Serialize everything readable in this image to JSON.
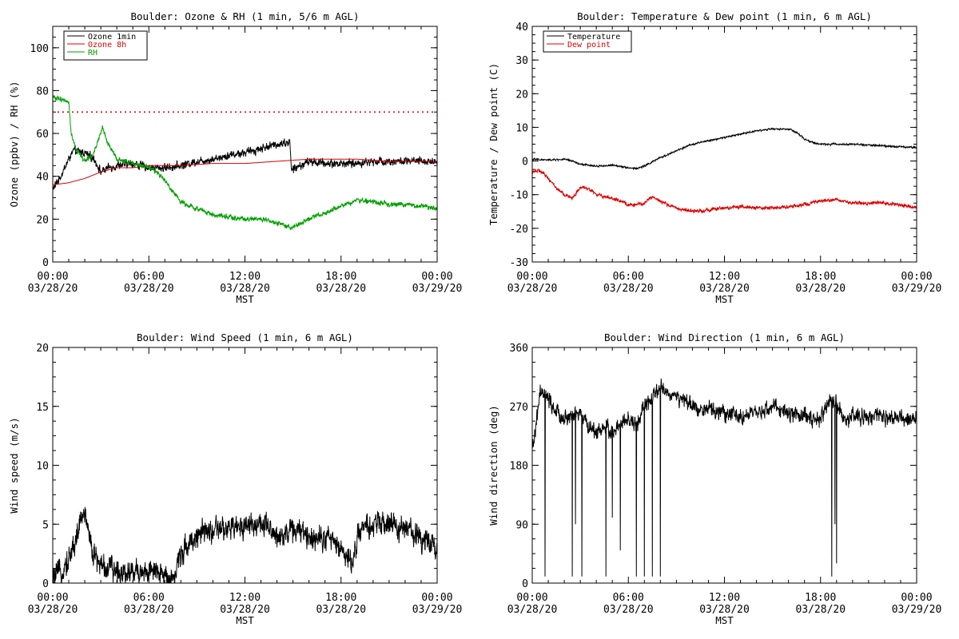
{
  "chart_data": [
    {
      "type": "line",
      "title": "Boulder: Ozone & RH (1 min, 5/6 m AGL)",
      "xlabel": "MST",
      "ylabel": "Ozone (ppbv) / RH (%)",
      "xlim": [
        0,
        24
      ],
      "ylim": [
        0,
        110
      ],
      "yticks": [
        0,
        20,
        40,
        60,
        80,
        100
      ],
      "x_ticks": [
        {
          "time": "00:00",
          "date": "03/28/20"
        },
        {
          "time": "06:00",
          "date": "03/28/20"
        },
        {
          "time": "12:00",
          "date": "03/28/20"
        },
        {
          "time": "18:00",
          "date": "03/28/20"
        },
        {
          "time": "00:00",
          "date": "03/29/20"
        }
      ],
      "legend_position": "top-left",
      "reference_line": {
        "value": 70,
        "color": "#dd0000",
        "style": "dotted"
      },
      "series": [
        {
          "name": "Ozone 1min",
          "color": "#000000",
          "noise": 2.2,
          "points": [
            [
              0,
              34
            ],
            [
              0.5,
              40
            ],
            [
              1,
              48
            ],
            [
              1.3,
              52
            ],
            [
              2,
              51
            ],
            [
              2.6,
              48
            ],
            [
              3,
              42
            ],
            [
              3.5,
              44
            ],
            [
              4,
              45
            ],
            [
              5,
              46
            ],
            [
              6,
              44
            ],
            [
              7,
              44
            ],
            [
              8,
              45
            ],
            [
              9,
              47
            ],
            [
              10,
              48
            ],
            [
              11,
              50
            ],
            [
              12,
              51
            ],
            [
              13,
              53
            ],
            [
              14,
              55
            ],
            [
              14.8,
              56
            ],
            [
              14.9,
              43
            ],
            [
              15.5,
              45
            ],
            [
              16,
              47
            ],
            [
              17,
              46
            ],
            [
              18,
              46
            ],
            [
              19,
              46
            ],
            [
              20,
              47
            ],
            [
              22,
              47
            ],
            [
              24,
              47
            ]
          ]
        },
        {
          "name": "Ozone 8h",
          "color": "#dd0000",
          "noise": 0,
          "points": [
            [
              0,
              36
            ],
            [
              1,
              37
            ],
            [
              2,
              39
            ],
            [
              3,
              42
            ],
            [
              4,
              44
            ],
            [
              5,
              44
            ],
            [
              6,
              45
            ],
            [
              8,
              45
            ],
            [
              10,
              46
            ],
            [
              12,
              46
            ],
            [
              14,
              47
            ],
            [
              16,
              48
            ],
            [
              17,
              48
            ],
            [
              18,
              48
            ],
            [
              19,
              48
            ],
            [
              21,
              47
            ],
            [
              24,
              47
            ]
          ]
        },
        {
          "name": "RH",
          "color": "#00a000",
          "noise": 1.3,
          "points": [
            [
              0,
              77
            ],
            [
              0.5,
              76
            ],
            [
              1,
              75
            ],
            [
              1.15,
              60
            ],
            [
              1.5,
              52
            ],
            [
              2,
              47
            ],
            [
              2.5,
              50
            ],
            [
              3,
              60
            ],
            [
              3.1,
              63
            ],
            [
              3.4,
              56
            ],
            [
              4,
              48
            ],
            [
              5,
              46
            ],
            [
              6,
              44
            ],
            [
              6.5,
              42
            ],
            [
              7,
              38
            ],
            [
              7.5,
              33
            ],
            [
              8,
              28
            ],
            [
              9,
              25
            ],
            [
              10,
              22
            ],
            [
              11,
              21
            ],
            [
              12,
              20
            ],
            [
              13,
              20
            ],
            [
              14,
              18
            ],
            [
              14.8,
              16
            ],
            [
              15.5,
              18
            ],
            [
              16,
              20
            ],
            [
              17,
              23
            ],
            [
              18,
              26
            ],
            [
              19,
              29
            ],
            [
              20,
              28
            ],
            [
              21,
              27
            ],
            [
              22,
              27
            ],
            [
              23,
              26
            ],
            [
              24,
              25
            ]
          ]
        }
      ]
    },
    {
      "type": "line",
      "title": "Boulder: Temperature & Dew point (1 min, 6 m AGL)",
      "xlabel": "MST",
      "ylabel": "Temperature / Dew point (C)",
      "xlim": [
        0,
        24
      ],
      "ylim": [
        -30,
        40
      ],
      "yticks": [
        -30,
        -20,
        -10,
        0,
        10,
        20,
        30,
        40
      ],
      "x_ticks": [
        {
          "time": "00:00",
          "date": "03/28/20"
        },
        {
          "time": "06:00",
          "date": "03/28/20"
        },
        {
          "time": "12:00",
          "date": "03/28/20"
        },
        {
          "time": "18:00",
          "date": "03/28/20"
        },
        {
          "time": "00:00",
          "date": "03/29/20"
        }
      ],
      "legend_position": "top-left",
      "series": [
        {
          "name": "Temperature",
          "color": "#000000",
          "noise": 0.3,
          "points": [
            [
              0,
              0.5
            ],
            [
              1,
              0.3
            ],
            [
              2,
              0.5
            ],
            [
              2.5,
              0
            ],
            [
              3,
              -1
            ],
            [
              4,
              -1.5
            ],
            [
              5,
              -1.3
            ],
            [
              5.5,
              -1.5
            ],
            [
              6,
              -2
            ],
            [
              6.5,
              -2.3
            ],
            [
              7,
              -1.5
            ],
            [
              8,
              1
            ],
            [
              9,
              3
            ],
            [
              10,
              5
            ],
            [
              11,
              6
            ],
            [
              12,
              7
            ],
            [
              13,
              8
            ],
            [
              14,
              9
            ],
            [
              15,
              9.5
            ],
            [
              16,
              9.5
            ],
            [
              16.5,
              8.5
            ],
            [
              17,
              6.5
            ],
            [
              17.5,
              5.5
            ],
            [
              18,
              5
            ],
            [
              20,
              5
            ],
            [
              22,
              4.5
            ],
            [
              24,
              4
            ]
          ]
        },
        {
          "name": "Dew point",
          "color": "#dd0000",
          "noise": 0.6,
          "points": [
            [
              0,
              -3
            ],
            [
              0.5,
              -3
            ],
            [
              1,
              -5
            ],
            [
              1.5,
              -8
            ],
            [
              2,
              -10
            ],
            [
              2.5,
              -11
            ],
            [
              3,
              -8
            ],
            [
              3.5,
              -8
            ],
            [
              4,
              -10
            ],
            [
              5,
              -11
            ],
            [
              6,
              -13
            ],
            [
              6.5,
              -13
            ],
            [
              7,
              -12.5
            ],
            [
              7.5,
              -10.5
            ],
            [
              8,
              -12
            ],
            [
              9,
              -14
            ],
            [
              10,
              -15
            ],
            [
              11,
              -14.5
            ],
            [
              12,
              -14
            ],
            [
              13,
              -13.5
            ],
            [
              14,
              -14
            ],
            [
              15,
              -14
            ],
            [
              16,
              -13.5
            ],
            [
              17,
              -13
            ],
            [
              18,
              -12
            ],
            [
              19,
              -11.5
            ],
            [
              20,
              -12.5
            ],
            [
              22,
              -12.5
            ],
            [
              23,
              -13
            ],
            [
              24,
              -14
            ]
          ]
        }
      ]
    },
    {
      "type": "line",
      "title": "Boulder: Wind Speed (1 min, 6 m AGL)",
      "xlabel": "MST",
      "ylabel": "Wind speed (m/s)",
      "xlim": [
        0,
        24
      ],
      "ylim": [
        0,
        20
      ],
      "yticks": [
        0,
        5,
        10,
        15,
        20
      ],
      "x_ticks": [
        {
          "time": "00:00",
          "date": "03/28/20"
        },
        {
          "time": "06:00",
          "date": "03/28/20"
        },
        {
          "time": "12:00",
          "date": "03/28/20"
        },
        {
          "time": "18:00",
          "date": "03/28/20"
        },
        {
          "time": "00:00",
          "date": "03/29/20"
        }
      ],
      "series": [
        {
          "name": "",
          "color": "#000000",
          "noise": 1.2,
          "points": [
            [
              0,
              0.3
            ],
            [
              0.5,
              1
            ],
            [
              1,
              2
            ],
            [
              1.5,
              4
            ],
            [
              1.9,
              6
            ],
            [
              2.2,
              5
            ],
            [
              2.5,
              2.5
            ],
            [
              3,
              1.5
            ],
            [
              4,
              1
            ],
            [
              5,
              1
            ],
            [
              6,
              1
            ],
            [
              6.5,
              0.7
            ],
            [
              7,
              0.7
            ],
            [
              7.6,
              0.5
            ],
            [
              8,
              2.5
            ],
            [
              8.5,
              3.5
            ],
            [
              9,
              4
            ],
            [
              10,
              4.5
            ],
            [
              11,
              4.5
            ],
            [
              12,
              5
            ],
            [
              13,
              5
            ],
            [
              14,
              4
            ],
            [
              15,
              4.5
            ],
            [
              16,
              4
            ],
            [
              17,
              4
            ],
            [
              18,
              3
            ],
            [
              18.7,
              1.5
            ],
            [
              19,
              4
            ],
            [
              20,
              5
            ],
            [
              21,
              5
            ],
            [
              22,
              4.5
            ],
            [
              23,
              4
            ],
            [
              24,
              3
            ]
          ]
        }
      ]
    },
    {
      "type": "line",
      "title": "Boulder: Wind Direction (1 min, 6 m AGL)",
      "xlabel": "MST",
      "ylabel": "Wind direction (deg)",
      "xlim": [
        0,
        24
      ],
      "ylim": [
        0,
        360
      ],
      "yticks": [
        0,
        90,
        180,
        270,
        360
      ],
      "x_ticks": [
        {
          "time": "00:00",
          "date": "03/28/20"
        },
        {
          "time": "06:00",
          "date": "03/28/20"
        },
        {
          "time": "12:00",
          "date": "03/28/20"
        },
        {
          "time": "18:00",
          "date": "03/28/20"
        },
        {
          "time": "00:00",
          "date": "03/29/20"
        }
      ],
      "series": [
        {
          "name": "",
          "color": "#000000",
          "noise": 14,
          "points": [
            [
              0,
              200
            ],
            [
              0.5,
              290
            ],
            [
              1,
              280
            ],
            [
              1.5,
              260
            ],
            [
              2,
              250
            ],
            [
              2.5,
              255
            ],
            [
              3,
              260
            ],
            [
              3.5,
              240
            ],
            [
              4,
              230
            ],
            [
              4.5,
              240
            ],
            [
              5,
              230
            ],
            [
              5.5,
              240
            ],
            [
              6,
              250
            ],
            [
              6.5,
              240
            ],
            [
              7,
              270
            ],
            [
              7.5,
              280
            ],
            [
              8,
              300
            ],
            [
              8.5,
              290
            ],
            [
              9,
              285
            ],
            [
              10,
              270
            ],
            [
              11,
              265
            ],
            [
              12,
              260
            ],
            [
              13,
              255
            ],
            [
              14,
              258
            ],
            [
              15,
              270
            ],
            [
              16,
              260
            ],
            [
              17,
              255
            ],
            [
              18,
              250
            ],
            [
              18.5,
              280
            ],
            [
              19,
              275
            ],
            [
              19.5,
              250
            ],
            [
              20,
              255
            ],
            [
              21,
              252
            ],
            [
              22,
              255
            ],
            [
              23,
              250
            ],
            [
              24,
              250
            ]
          ],
          "spikes": [
            [
              0.8,
              10
            ],
            [
              2.5,
              10
            ],
            [
              2.7,
              90
            ],
            [
              3.1,
              10
            ],
            [
              4.6,
              10
            ],
            [
              5,
              100
            ],
            [
              5.5,
              50
            ],
            [
              6.5,
              10
            ],
            [
              7,
              10
            ],
            [
              7.5,
              10
            ],
            [
              8,
              10
            ],
            [
              18.7,
              10
            ],
            [
              19,
              30
            ],
            [
              18.9,
              90
            ]
          ]
        }
      ]
    }
  ]
}
